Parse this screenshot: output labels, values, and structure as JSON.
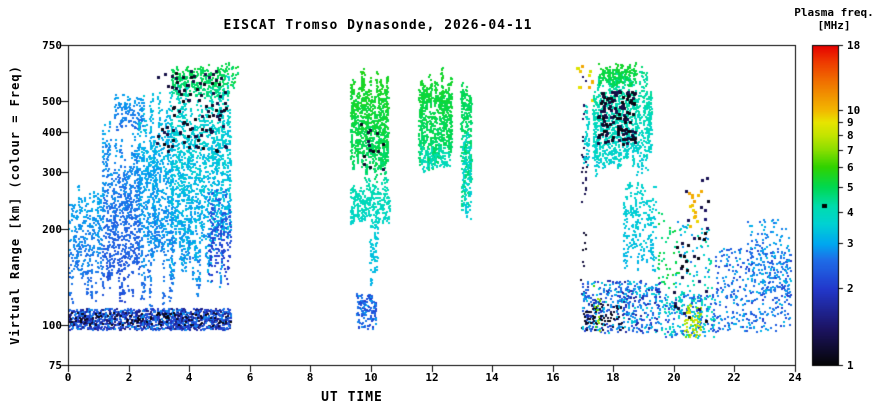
{
  "chart_data": {
    "type": "scatter",
    "title": "EISCAT Tromso Dynasonde, 2026-04-11",
    "xlabel": "UT TIME",
    "ylabel": "Virtual Range [km] (colour = Freq)",
    "x_axis": {
      "min": 0,
      "max": 24,
      "ticks": [
        0,
        2,
        4,
        6,
        8,
        10,
        12,
        14,
        16,
        18,
        20,
        22,
        24
      ]
    },
    "y_axis": {
      "min": 75,
      "max": 750,
      "scale": "log",
      "ticks": [
        750,
        500,
        400,
        300,
        200,
        100,
        75
      ]
    },
    "colorbar": {
      "title": "Plasma freq.",
      "units": "[MHz]",
      "min": 1,
      "max": 18,
      "scale": "log",
      "ticks": [
        18,
        10,
        9,
        8,
        7,
        6,
        5,
        4,
        3,
        2,
        1
      ],
      "marker_freq": 4.2,
      "colormap": [
        [
          1.0,
          "#050505"
        ],
        [
          1.4,
          "#1c1464"
        ],
        [
          2.0,
          "#2238cc"
        ],
        [
          2.6,
          "#1e6ee8"
        ],
        [
          3.0,
          "#00a8f0"
        ],
        [
          3.6,
          "#00d2d2"
        ],
        [
          4.2,
          "#00dcae"
        ],
        [
          5.0,
          "#00d850"
        ],
        [
          6.0,
          "#30d200"
        ],
        [
          7.0,
          "#8ade00"
        ],
        [
          8.0,
          "#c4e400"
        ],
        [
          9.0,
          "#e8e400"
        ],
        [
          10.0,
          "#f2b800"
        ],
        [
          13.0,
          "#f07000"
        ],
        [
          15.5,
          "#ee3a00"
        ],
        [
          18.0,
          "#e60000"
        ]
      ]
    },
    "clusters": [
      {
        "t": [
          0.0,
          5.35
        ],
        "h": [
          97,
          113
        ],
        "f": [
          1.4,
          2.9
        ],
        "n": 1300,
        "s": "band"
      },
      {
        "t": [
          0.0,
          5.35
        ],
        "h": [
          100,
          110
        ],
        "f": [
          1.0,
          1.25
        ],
        "n": 130,
        "s": "band"
      },
      {
        "t": [
          0.0,
          1.15
        ],
        "h": [
          114,
          305
        ],
        "f": [
          2.3,
          3.3
        ],
        "n": 420,
        "s": "streaks"
      },
      {
        "t": [
          1.1,
          2.35
        ],
        "h": [
          112,
          455
        ],
        "f": [
          2.0,
          3.2
        ],
        "n": 800,
        "s": "streaks"
      },
      {
        "t": [
          1.5,
          2.5
        ],
        "h": [
          400,
          530
        ],
        "f": [
          2.4,
          3.1
        ],
        "n": 160,
        "s": "streaks"
      },
      {
        "t": [
          2.3,
          3.45
        ],
        "h": [
          110,
          570
        ],
        "f": [
          2.3,
          3.6
        ],
        "n": 950,
        "s": "streaks"
      },
      {
        "t": [
          3.35,
          5.35
        ],
        "h": [
          122,
          645
        ],
        "f": [
          2.4,
          4.2
        ],
        "n": 1500,
        "s": "streaks"
      },
      {
        "t": [
          3.4,
          5.3
        ],
        "h": [
          500,
          668
        ],
        "f": [
          4.2,
          5.4
        ],
        "n": 330,
        "s": "streaks"
      },
      {
        "t": [
          4.6,
          5.35
        ],
        "h": [
          128,
          285
        ],
        "f": [
          1.8,
          2.6
        ],
        "n": 180,
        "s": "streaks"
      },
      {
        "t": [
          2.9,
          5.2
        ],
        "h": [
          350,
          630
        ],
        "f": [
          1.0,
          1.3
        ],
        "n": 100,
        "s": "dots",
        "p": 3
      },
      {
        "t": [
          5.3,
          5.6
        ],
        "h": [
          550,
          645
        ],
        "f": [
          4.4,
          5.4
        ],
        "n": 22,
        "s": "dots"
      },
      {
        "t": [
          9.3,
          10.55
        ],
        "h": [
          270,
          655
        ],
        "f": [
          4.4,
          5.9
        ],
        "n": 950,
        "s": "streaks"
      },
      {
        "t": [
          9.3,
          10.6
        ],
        "h": [
          195,
          295
        ],
        "f": [
          3.5,
          4.4
        ],
        "n": 320,
        "s": "streaks"
      },
      {
        "t": [
          9.5,
          10.15
        ],
        "h": [
          98,
          126
        ],
        "f": [
          2.0,
          3.0
        ],
        "n": 140,
        "s": "band"
      },
      {
        "t": [
          9.95,
          10.2
        ],
        "h": [
          126,
          210
        ],
        "f": [
          3.0,
          3.7
        ],
        "n": 70,
        "s": "streaks"
      },
      {
        "t": [
          9.6,
          10.4
        ],
        "h": [
          300,
          430
        ],
        "f": [
          1.0,
          1.3
        ],
        "n": 14,
        "s": "dots",
        "p": 3
      },
      {
        "t": [
          11.55,
          12.65
        ],
        "h": [
          300,
          655
        ],
        "f": [
          4.4,
          5.7
        ],
        "n": 750,
        "s": "streaks"
      },
      {
        "t": [
          11.6,
          12.6
        ],
        "h": [
          300,
          375
        ],
        "f": [
          3.7,
          4.5
        ],
        "n": 130,
        "s": "streaks"
      },
      {
        "t": [
          12.95,
          13.3
        ],
        "h": [
          210,
          650
        ],
        "f": [
          4.1,
          5.3
        ],
        "n": 260,
        "s": "streaks"
      },
      {
        "t": [
          13.0,
          13.28
        ],
        "h": [
          210,
          430
        ],
        "f": [
          3.3,
          4.1
        ],
        "n": 90,
        "s": "streaks"
      },
      {
        "t": [
          16.78,
          16.98
        ],
        "h": [
          555,
          650
        ],
        "f": [
          8.5,
          11.0
        ],
        "n": 6,
        "s": "dots",
        "p": 3
      },
      {
        "t": [
          16.9,
          17.1
        ],
        "h": [
          95,
          640
        ],
        "f": [
          1.0,
          1.5
        ],
        "n": 30,
        "s": "streaks"
      },
      {
        "t": [
          17.0,
          17.18
        ],
        "h": [
          290,
          505
        ],
        "f": [
          3.2,
          4.0
        ],
        "n": 60,
        "s": "streaks"
      },
      {
        "t": [
          17.1,
          17.3
        ],
        "h": [
          460,
          630
        ],
        "f": [
          7.5,
          10.5
        ],
        "n": 6,
        "s": "dots",
        "p": 3
      },
      {
        "t": [
          17.3,
          19.25
        ],
        "h": [
          290,
          662
        ],
        "f": [
          3.2,
          4.8
        ],
        "n": 1150,
        "s": "streaks"
      },
      {
        "t": [
          17.5,
          18.75
        ],
        "h": [
          555,
          668
        ],
        "f": [
          4.7,
          5.6
        ],
        "n": 220,
        "s": "streaks"
      },
      {
        "t": [
          17.45,
          18.7
        ],
        "h": [
          370,
          545
        ],
        "f": [
          1.0,
          1.3
        ],
        "n": 130,
        "s": "blob",
        "p": 3
      },
      {
        "t": [
          18.3,
          19.4
        ],
        "h": [
          145,
          300
        ],
        "f": [
          3.0,
          3.9
        ],
        "n": 260,
        "s": "streaks"
      },
      {
        "t": [
          19.45,
          20.15
        ],
        "h": [
          130,
          225
        ],
        "f": [
          4.4,
          5.4
        ],
        "n": 45,
        "s": "dots"
      },
      {
        "t": [
          16.95,
          19.55
        ],
        "h": [
          95,
          138
        ],
        "f": [
          1.6,
          3.6
        ],
        "n": 480,
        "s": "band"
      },
      {
        "t": [
          17.0,
          18.3
        ],
        "h": [
          97,
          117
        ],
        "f": [
          1.0,
          1.25
        ],
        "n": 70,
        "s": "band"
      },
      {
        "t": [
          17.3,
          17.55
        ],
        "h": [
          95,
          135
        ],
        "f": [
          5.5,
          8.0
        ],
        "n": 14,
        "s": "dots"
      },
      {
        "t": [
          19.55,
          21.35
        ],
        "h": [
          92,
          126
        ],
        "f": [
          2.0,
          4.2
        ],
        "n": 260,
        "s": "band"
      },
      {
        "t": [
          20.3,
          20.9
        ],
        "h": [
          92,
          116
        ],
        "f": [
          6.5,
          9.5
        ],
        "n": 70,
        "s": "band"
      },
      {
        "t": [
          20.45,
          20.85
        ],
        "h": [
          205,
          265
        ],
        "f": [
          9.0,
          11.0
        ],
        "n": 14,
        "s": "dots",
        "p": 3
      },
      {
        "t": [
          20.0,
          21.25
        ],
        "h": [
          125,
          215
        ],
        "f": [
          2.6,
          4.6
        ],
        "n": 70,
        "s": "blob"
      },
      {
        "t": [
          19.9,
          21.15
        ],
        "h": [
          100,
          320
        ],
        "f": [
          1.0,
          1.5
        ],
        "n": 35,
        "s": "dots",
        "p": 3
      },
      {
        "t": [
          21.35,
          23.85
        ],
        "h": [
          96,
          175
        ],
        "f": [
          2.0,
          3.2
        ],
        "n": 380,
        "s": "blob"
      },
      {
        "t": [
          22.4,
          23.85
        ],
        "h": [
          125,
          215
        ],
        "f": [
          2.4,
          3.3
        ],
        "n": 140,
        "s": "blob"
      }
    ]
  }
}
